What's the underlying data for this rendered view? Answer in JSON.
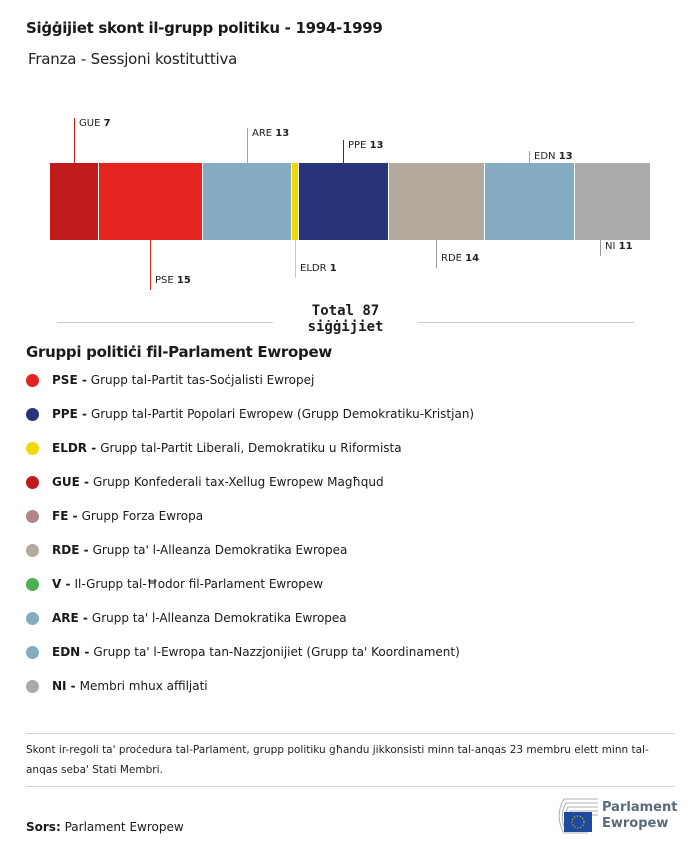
{
  "header": {
    "title": "Siġġijiet skont il-grupp politiku - 1994-1999",
    "subtitle": "Franza - Sessjoni kostituttiva"
  },
  "chart_data": {
    "type": "bar",
    "orientation": "stacked-horizontal",
    "categories": [
      "GUE",
      "PSE",
      "ARE",
      "ELDR",
      "PPE",
      "RDE",
      "EDN",
      "NI"
    ],
    "values": [
      7,
      15,
      13,
      1,
      13,
      14,
      13,
      11
    ],
    "colors": [
      "#c01c1c",
      "#e52421",
      "#85abc0",
      "#f0d800",
      "#283479",
      "#b3aa9d",
      "#85abc0",
      "#aaaaaa"
    ],
    "total_label": "Total 87",
    "total_unit": "siġġijiet"
  },
  "legend": {
    "title": "Gruppi politiċi fil-Parlament Ewropew",
    "items": [
      {
        "abbr": "PSE -",
        "text": "Grupp tal-Partit tas-Soċjalisti Ewropej",
        "color": "#e52421"
      },
      {
        "abbr": "PPE -",
        "text": "Grupp tal-Partit Popolari Ewropew (Grupp Demokratiku-Kristjan)",
        "color": "#283479"
      },
      {
        "abbr": "ELDR -",
        "text": "Grupp tal-Partit Liberali, Demokratiku u Riformista",
        "color": "#f0d800"
      },
      {
        "abbr": "GUE -",
        "text": "Grupp Konfederali tax-Xellug Ewropew Magħqud",
        "color": "#c01c1c"
      },
      {
        "abbr": "FE -",
        "text": "Grupp Forza Ewropa",
        "color": "#b3858b"
      },
      {
        "abbr": "RDE -",
        "text": "Grupp ta' l-Alleanza Demokratika Ewropea",
        "color": "#b3aa9d"
      },
      {
        "abbr": "V -",
        "text": "Il-Grupp tal-Ħodor fil-Parlament Ewropew",
        "color": "#4caf50"
      },
      {
        "abbr": "ARE -",
        "text": "Grupp ta' l-Alleanza Demokratika Ewropea",
        "color": "#85abc0"
      },
      {
        "abbr": "EDN -",
        "text": "Grupp ta' l-Ewropa tan-Nazzjonijiet (Grupp ta' Koordinament)",
        "color": "#85abc0"
      },
      {
        "abbr": "NI -",
        "text": "Membri mhux affiljati",
        "color": "#aaaaaa"
      }
    ]
  },
  "footnote": "Skont ir-regoli ta' proċedura tal-Parlament, grupp politiku għandu jikkonsisti minn tal-anqas 23 membru elett minn tal-anqas seba' Stati Membri.",
  "source": {
    "label": "Sors:",
    "text": "Parlament Ewropew"
  },
  "logo": {
    "line1": "Parlament",
    "line2": "Ewropew"
  }
}
